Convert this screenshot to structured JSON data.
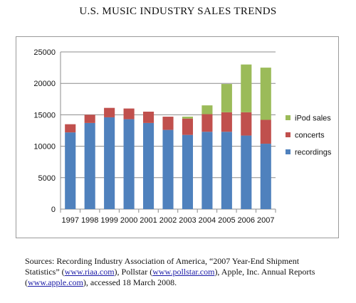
{
  "title": "U.S. MUSIC INDUSTRY SALES TRENDS",
  "chart_data": {
    "type": "bar",
    "stacked": true,
    "categories": [
      "1997",
      "1998",
      "1999",
      "2000",
      "2001",
      "2002",
      "2003",
      "2004",
      "2005",
      "2006",
      "2007"
    ],
    "series": [
      {
        "name": "recordings",
        "color": "#4f81bd",
        "values": [
          12200,
          13700,
          14600,
          14300,
          13700,
          12600,
          11800,
          12300,
          12300,
          11700,
          10400
        ]
      },
      {
        "name": "concerts",
        "color": "#c0504d",
        "values": [
          1300,
          1300,
          1500,
          1700,
          1800,
          2100,
          2600,
          2800,
          3100,
          3700,
          3800
        ]
      },
      {
        "name": "iPod sales",
        "color": "#9bbb59",
        "values": [
          0,
          0,
          0,
          0,
          0,
          0,
          300,
          1400,
          4500,
          7600,
          8300
        ]
      }
    ],
    "ylim": [
      0,
      25000
    ],
    "yticks": [
      "0",
      "5000",
      "10000",
      "15000",
      "20000",
      "25000"
    ],
    "legend_order": [
      "iPod sales",
      "concerts",
      "recordings"
    ],
    "legend_position": "right",
    "grid": true
  },
  "sources": {
    "line1_prefix": "Sources: Recording Industry Association of America, “2007 Year-End Shipment",
    "line2_prefix": "Statistics” (",
    "link_riaa": "www.riaa.com",
    "line2_mid": "), Pollstar (",
    "link_pollstar": "www.pollstar.com",
    "line2_suffix": "), Apple, Inc. Annual Reports",
    "line3_prefix": "(",
    "link_apple": "www.apple.com",
    "line3_suffix": "), accessed 18 March 2008."
  }
}
